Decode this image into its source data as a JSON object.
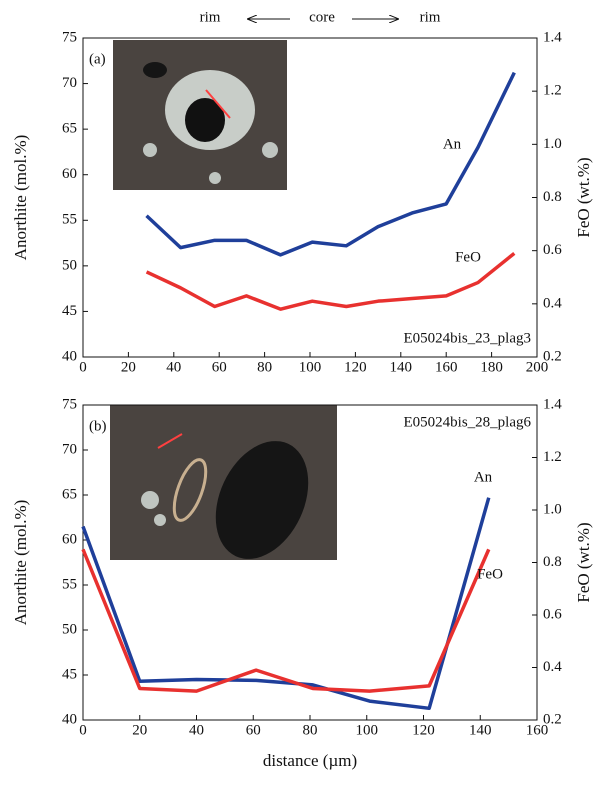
{
  "chart_data": [
    {
      "type": "line",
      "panel_label": "(a)",
      "sample": "E05024bis_23_plag3",
      "direction_labels": [
        "rim",
        "core",
        "rim"
      ],
      "ylabel": "Anorthite (mol.%)",
      "y2label": "FeO (wt.%)",
      "xlim": [
        0,
        200
      ],
      "xticks": [
        0,
        20,
        40,
        60,
        80,
        100,
        120,
        140,
        160,
        180,
        200
      ],
      "ylim": [
        40,
        75
      ],
      "yticks": [
        40,
        45,
        50,
        55,
        60,
        65,
        70,
        75
      ],
      "y2lim": [
        0.2,
        1.4
      ],
      "y2ticks": [
        0.2,
        0.4,
        0.6,
        0.8,
        {
          "value": 1,
          "label": "1.0"
        },
        1.2,
        1.4
      ],
      "series": [
        {
          "name": "An",
          "color": "#1f3f9a",
          "x": [
            28,
            43,
            58,
            72,
            87,
            101,
            116,
            130,
            145,
            160,
            174,
            190
          ],
          "values": [
            55.5,
            52,
            52.8,
            52.8,
            51.2,
            52.6,
            52.2,
            54.3,
            55.8,
            56.8,
            63,
            71.2
          ]
        },
        {
          "name": "FeO",
          "color": "#e8312f",
          "axis": "y2",
          "x": [
            28,
            43,
            58,
            72,
            87,
            101,
            116,
            130,
            145,
            160,
            174,
            190
          ],
          "values": [
            0.52,
            0.46,
            0.39,
            0.43,
            0.38,
            0.41,
            0.39,
            0.41,
            0.42,
            0.43,
            0.48,
            0.59
          ]
        }
      ]
    },
    {
      "type": "line",
      "panel_label": "(b)",
      "sample": "E05024bis_28_plag6",
      "ylabel": "Anorthite (mol.%)",
      "y2label": "FeO (wt.%)",
      "xlabel": "distance (µm)",
      "xlim": [
        0,
        160
      ],
      "xticks": [
        0,
        20,
        40,
        60,
        80,
        100,
        120,
        140,
        160
      ],
      "ylim": [
        40,
        75
      ],
      "yticks": [
        40,
        45,
        50,
        55,
        60,
        65,
        70,
        75
      ],
      "y2lim": [
        0.2,
        1.4
      ],
      "y2ticks": [
        0.2,
        0.4,
        0.6,
        0.8,
        {
          "value": 1,
          "label": "1.0"
        },
        1.2,
        1.4
      ],
      "series": [
        {
          "name": "An",
          "color": "#1f3f9a",
          "x": [
            0,
            20,
            40,
            61,
            81,
            101,
            122,
            143
          ],
          "values": [
            61.5,
            44.3,
            44.5,
            44.4,
            43.9,
            42.1,
            41.3,
            64.7
          ]
        },
        {
          "name": "FeO",
          "color": "#e8312f",
          "axis": "y2",
          "x": [
            0,
            20,
            40,
            61,
            81,
            101,
            122,
            143
          ],
          "values": [
            0.85,
            0.32,
            0.31,
            0.39,
            0.32,
            0.31,
            0.33,
            0.85
          ]
        }
      ]
    }
  ]
}
